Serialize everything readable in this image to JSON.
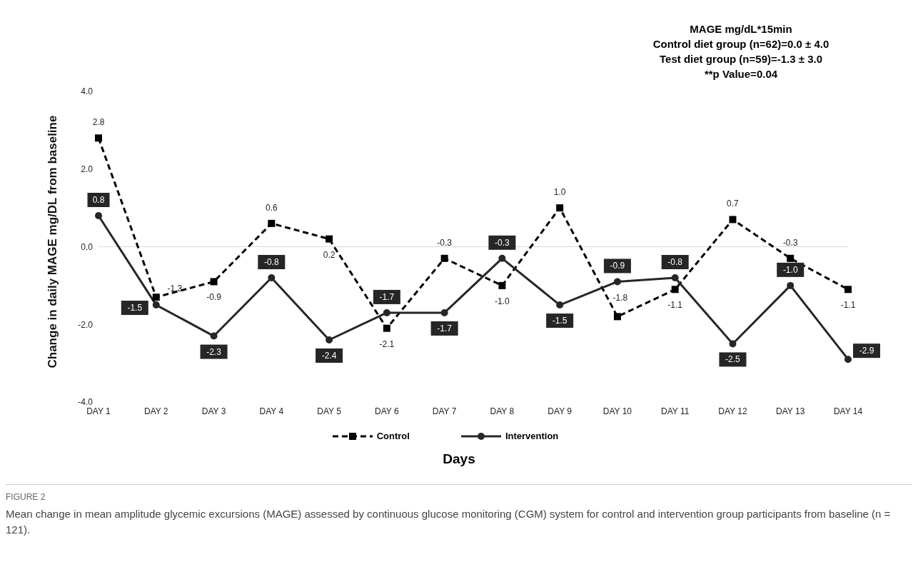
{
  "chart_data": {
    "type": "line",
    "xlabel": "Days",
    "ylabel": "Change in daily MAGE  mg/DL from baseline",
    "categories": [
      "DAY 1",
      "DAY 2",
      "DAY 3",
      "DAY 4",
      "DAY 5",
      "DAY 6",
      "DAY 7",
      "DAY 8",
      "DAY 9",
      "DAY 10",
      "DAY 11",
      "DAY 12",
      "DAY 13",
      "DAY 14"
    ],
    "series": [
      {
        "name": "Control",
        "color": "#000000",
        "line_style": "dashed",
        "marker": "square",
        "values": [
          2.8,
          -1.3,
          -0.9,
          0.6,
          0.2,
          -2.1,
          -0.3,
          -1.0,
          1.0,
          -1.8,
          -1.1,
          0.7,
          -0.3,
          -1.1
        ],
        "value_labels": [
          "2.8",
          "-1.3",
          "-0.9",
          "0.6",
          "0.2",
          "-2.1",
          "-0.3",
          "-1.0",
          "1.0",
          "-1.8",
          "-1.1",
          "0.7",
          "-0.3",
          "-1.1"
        ]
      },
      {
        "name": "Intervention",
        "color": "#262626",
        "line_style": "solid",
        "marker": "circle",
        "values": [
          0.8,
          -1.5,
          -2.3,
          -0.8,
          -2.4,
          -1.7,
          -1.7,
          -0.3,
          -1.5,
          -0.9,
          -0.8,
          -2.5,
          -1.0,
          -2.9
        ],
        "value_labels": [
          "0.8",
          "-1.5",
          "-2.3",
          "-0.8",
          "-2.4",
          "-1.7",
          "-1.7",
          "-0.3",
          "-1.5",
          "-0.9",
          "-0.8",
          "-2.5",
          "-1.0",
          "-2.9"
        ]
      }
    ],
    "ylim": [
      -4,
      4
    ],
    "yticks": [
      {
        "value": -4,
        "label": "-4.0"
      },
      {
        "value": -2,
        "label": "-2.0"
      },
      {
        "value": 0,
        "label": "0.0"
      },
      {
        "value": 2,
        "label": "2.0"
      },
      {
        "value": 4,
        "label": "4.0"
      }
    ],
    "ref_lines": [
      {
        "axis": "y",
        "value": 0,
        "color": "#d9d9d9"
      }
    ],
    "grid": false,
    "legend": "bottom",
    "annotations": [
      "MAGE mg/dL*15min",
      "Control diet group (n=62)=0.0 ± 4.0",
      "Test diet group (n=59)=-1.3 ± 3.0",
      "**p Value=0.04",
      "FIGURE 2",
      "Mean change in mean amplitude glycemic excursions (MAGE) assessed by continuous glucose monitoring (CGM) system for control and intervention group participants from baseline (n = 121)."
    ]
  }
}
